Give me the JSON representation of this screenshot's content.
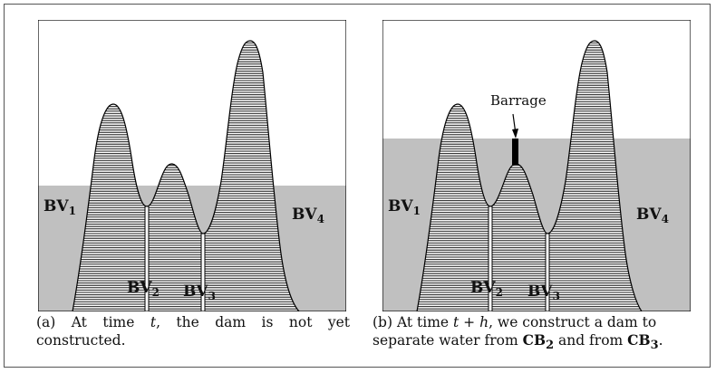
{
  "panel_a": {
    "labels": {
      "bv1": "BV",
      "bv1_sub": "1",
      "bv2": "BV",
      "bv2_sub": "2",
      "bv3": "BV",
      "bv3_sub": "3",
      "bv4": "BV",
      "bv4_sub": "4"
    },
    "caption_prefix": "(a) At time ",
    "caption_var": "t",
    "caption_rest": ", the dam is not yet constructed."
  },
  "panel_b": {
    "labels": {
      "bv1": "BV",
      "bv1_sub": "1",
      "bv2": "BV",
      "bv2_sub": "2",
      "bv3": "BV",
      "bv3_sub": "3",
      "bv4": "BV",
      "bv4_sub": "4"
    },
    "barrage_label": "Barrage",
    "caption_prefix": "(b) At time ",
    "caption_var": "t + h",
    "caption_mid": ", we construct a dam to separate water from ",
    "caption_cb2": "CB",
    "caption_cb2_sub": "2",
    "caption_and": " and from ",
    "caption_cb3": "CB",
    "caption_cb3_sub": "3",
    "caption_end": "."
  },
  "colors": {
    "water": "#c0c0c0",
    "terrain_hatch": "#000000",
    "border": "#000000",
    "dam": "#000000"
  }
}
